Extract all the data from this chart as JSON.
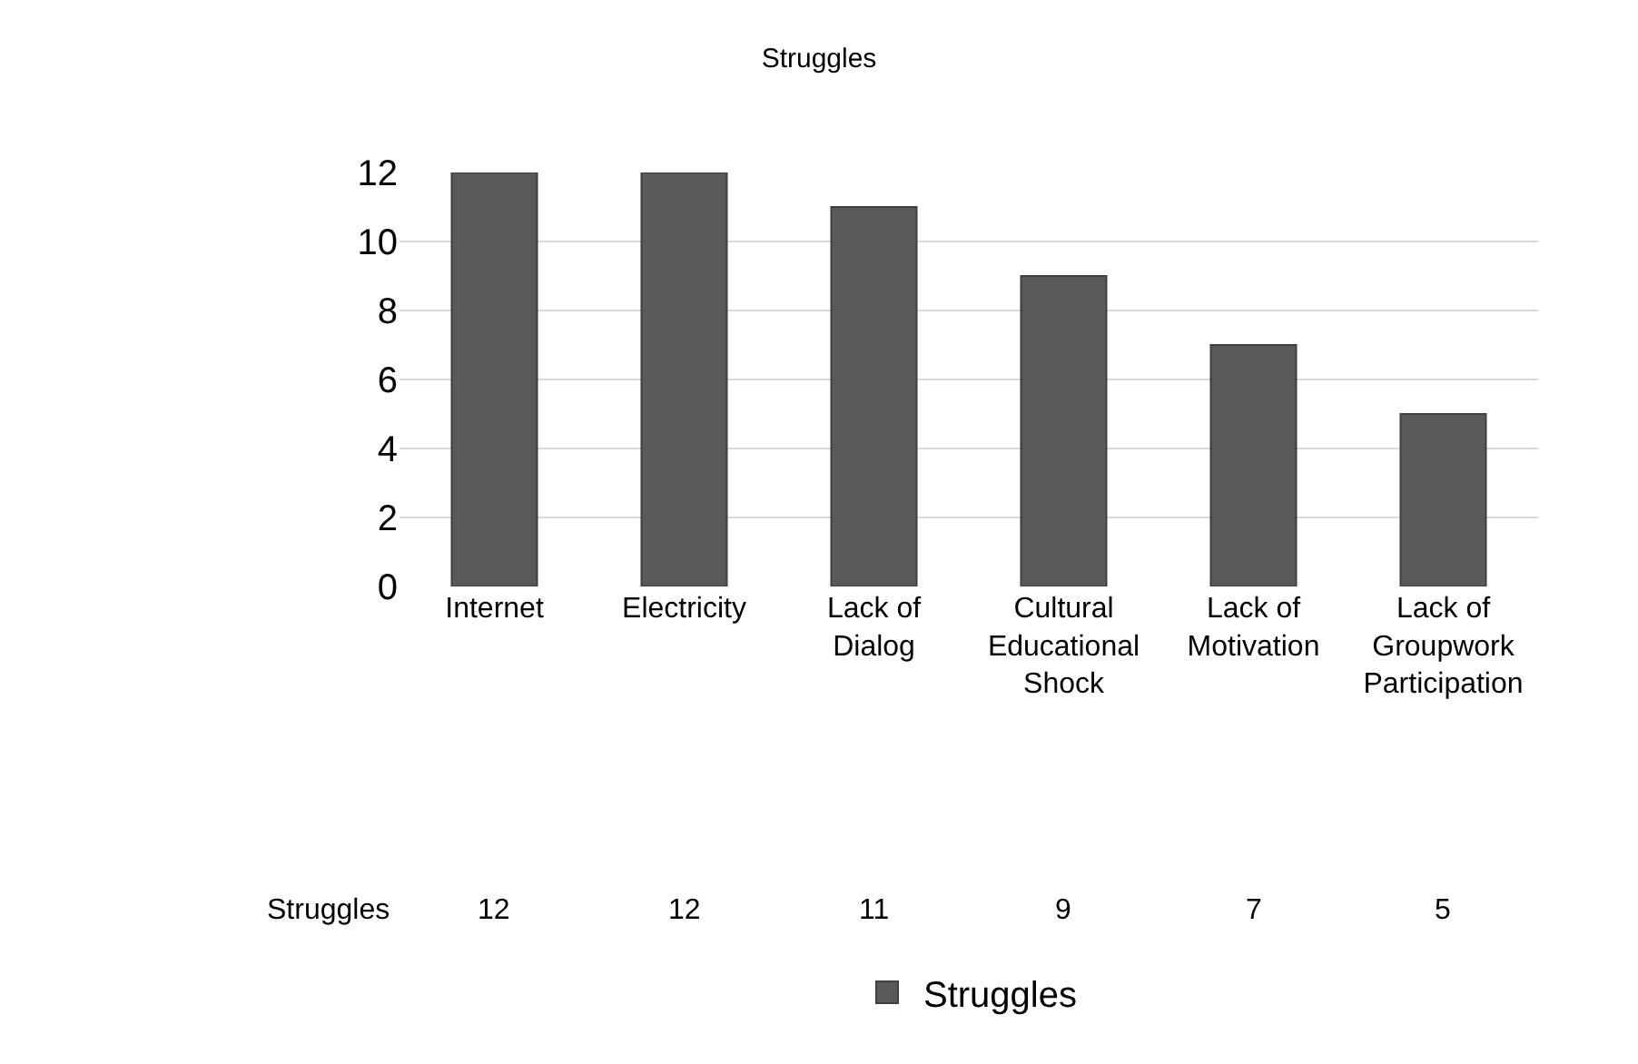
{
  "chart_data": {
    "type": "bar",
    "title": "Struggles",
    "categories": [
      "Internet",
      "Electricity",
      "Lack of Dialog",
      "Cultural Educational Shock",
      "Lack of Motivation",
      "Lack of Groupwork Participation"
    ],
    "series": [
      {
        "name": "Struggles",
        "color": "#595959",
        "values": [
          12,
          12,
          11,
          9,
          7,
          5
        ]
      }
    ],
    "ylim": [
      0,
      12
    ],
    "yticks": [
      0,
      2,
      4,
      6,
      8,
      10,
      12
    ],
    "grid": "y",
    "legend": "bottom",
    "data_labels": true
  }
}
